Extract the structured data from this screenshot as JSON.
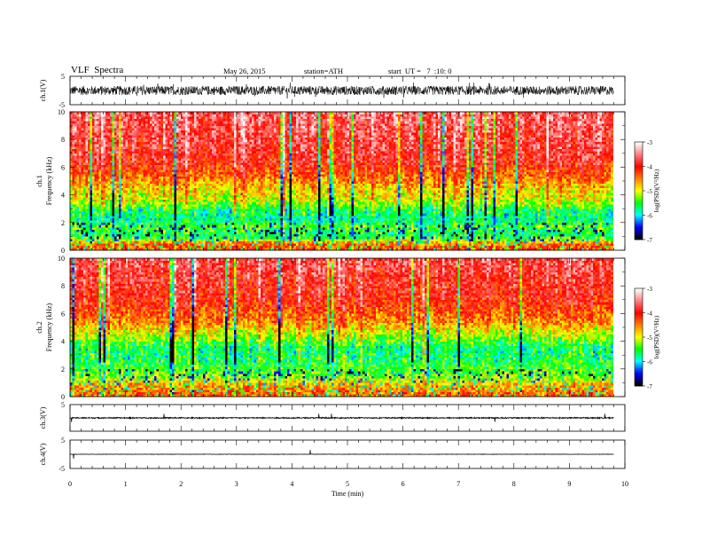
{
  "header": {
    "title": "VLF  Spectra",
    "date": "May 26, 2015",
    "station": "station=ATH",
    "start": "start  UT =   7  :10: 0"
  },
  "chart_data": {
    "type": "heatmap",
    "xlabel": "Time  (min)",
    "xlim": [
      0,
      10
    ],
    "xticks": [
      "0",
      "1",
      "2",
      "3",
      "4",
      "5",
      "6",
      "7",
      "8",
      "9",
      "10"
    ],
    "data_end_min": 9.8,
    "panels": [
      {
        "id": "ch1-wave",
        "kind": "waveform",
        "ylabel": "ch.1(V)",
        "ylim": [
          -5,
          5
        ],
        "yticks": [
          "5",
          "-5"
        ],
        "amplitude_v": 1.6
      },
      {
        "id": "ch1-spec",
        "kind": "spectrogram",
        "ylabel": [
          "ch.1",
          "Frequency  (kHz)"
        ],
        "ylim": [
          0,
          10
        ],
        "yticks": [
          "0",
          "2",
          "4",
          "6",
          "8",
          "10"
        ],
        "band_logpsd": [
          [
            0,
            -4.2
          ],
          [
            0.5,
            -4.4
          ],
          [
            1,
            -5.7
          ],
          [
            1.8,
            -5.4
          ],
          [
            2.2,
            -5.8
          ],
          [
            3,
            -5.6
          ],
          [
            3.5,
            -5.1
          ],
          [
            4.5,
            -4.8
          ],
          [
            5.5,
            -4.3
          ],
          [
            6.5,
            -3.9
          ],
          [
            10,
            -3.6
          ]
        ]
      },
      {
        "id": "ch2-spec",
        "kind": "spectrogram",
        "ylabel": [
          "ch.2",
          "Frequency  (kHz)"
        ],
        "ylim": [
          0,
          10
        ],
        "yticks": [
          "0",
          "2",
          "4",
          "6",
          "8",
          "10"
        ],
        "band_logpsd": [
          [
            0,
            -4.3
          ],
          [
            0.8,
            -4.6
          ],
          [
            1.5,
            -5.3
          ],
          [
            2.5,
            -5.6
          ],
          [
            3.5,
            -5.7
          ],
          [
            4.5,
            -5.1
          ],
          [
            5.5,
            -4.5
          ],
          [
            7,
            -4.0
          ],
          [
            10,
            -3.7
          ]
        ]
      },
      {
        "id": "ch3-wave",
        "kind": "waveform",
        "ylabel": "ch.3(V)",
        "ylim": [
          -5,
          5
        ],
        "yticks": [
          "5"
        ],
        "amplitude_v": 0.2
      },
      {
        "id": "ch4-wave",
        "kind": "waveform",
        "ylabel": "ch.4(V)",
        "ylim": [
          -5,
          5
        ],
        "yticks": [
          "5",
          "-5"
        ],
        "amplitude_v": 0.05
      }
    ],
    "colorbar": {
      "label": "log(PSD)(V²/Hz)",
      "range": [
        -7,
        -3
      ],
      "ticks": [
        "-3",
        "-4",
        "-5",
        "-6",
        "-7"
      ],
      "colors": [
        "#ffffff",
        "#ff0000",
        "#ffff00",
        "#00ff00",
        "#00ffff",
        "#0000ff",
        "#000000"
      ]
    }
  }
}
